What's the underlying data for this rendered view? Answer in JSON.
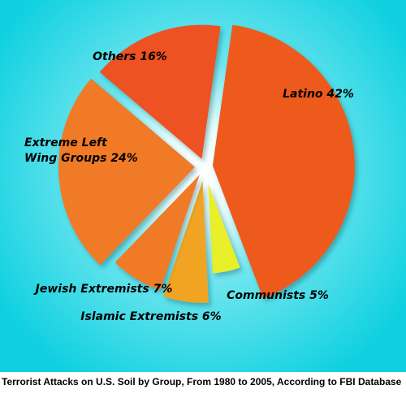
{
  "caption": "Terrorist Attacks on U.S. Soil by Group, From 1980 to 2005, According to FBI Database",
  "chart_data": {
    "type": "pie",
    "categories": [
      "Latino",
      "Communists",
      "Islamic Extremists",
      "Jewish Extremists",
      "Extreme Left Wing Groups",
      "Others"
    ],
    "values": [
      42,
      5,
      6,
      7,
      24,
      16
    ],
    "labels": [
      "Latino 42%",
      "Communists 5%",
      "Islamic Extremists 6%",
      "Jewish Extremists 7%",
      "Extreme Left\nWing Groups 24%",
      "Others 16%"
    ],
    "colors": [
      "#ee5a1e",
      "#e8f02a",
      "#f0a422",
      "#f07a26",
      "#f07a26",
      "#ee5122"
    ],
    "background_colors": [
      "#0fd0e0",
      "#9ef5f5",
      "#ffffff"
    ],
    "exploded": true,
    "legend": "none"
  }
}
